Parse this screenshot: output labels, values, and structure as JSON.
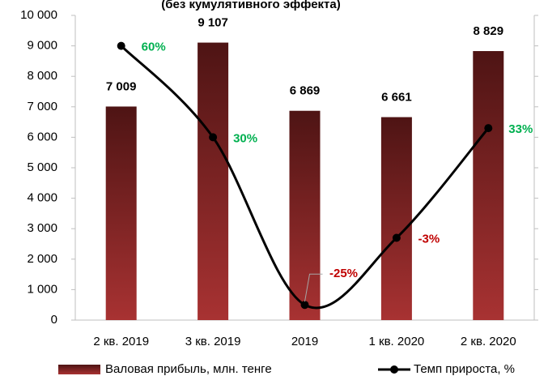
{
  "chart_data": {
    "type": "bar+line",
    "title": "(без кумулятивного эффекта)",
    "categories": [
      "2 кв. 2019",
      "3 кв. 2019",
      "2019",
      "1 кв. 2020",
      "2 кв. 2020"
    ],
    "series": [
      {
        "name": "Валовая прибыль, млн. тенге",
        "type": "bar",
        "color": "#7a2222",
        "values": [
          7009,
          9107,
          6869,
          6661,
          8829
        ],
        "value_labels": [
          "7 009",
          "9 107",
          "6 869",
          "6 661",
          "8 829"
        ]
      },
      {
        "name": "Темп прироста, %",
        "type": "line",
        "axis": "y2",
        "color": "#000000",
        "values": [
          60,
          30,
          -25,
          -3,
          33
        ],
        "value_labels": [
          "60%",
          "30%",
          "-25%",
          "-3%",
          "33%"
        ],
        "label_colors": [
          "#00b050",
          "#00b050",
          "#c00000",
          "#c00000",
          "#00b050"
        ]
      }
    ],
    "ylim": [
      0,
      10000
    ],
    "yticks": [
      {
        "value": 0,
        "label": "0"
      },
      {
        "value": 1000,
        "label": "1 000"
      },
      {
        "value": 2000,
        "label": "2 000"
      },
      {
        "value": 3000,
        "label": "3 000"
      },
      {
        "value": 4000,
        "label": "4 000"
      },
      {
        "value": 5000,
        "label": "5 000"
      },
      {
        "value": 6000,
        "label": "6 000"
      },
      {
        "value": 7000,
        "label": "7 000"
      },
      {
        "value": 8000,
        "label": "8 000"
      },
      {
        "value": 9000,
        "label": "9 000"
      },
      {
        "value": 10000,
        "label": "10 000"
      }
    ],
    "y2lim": [
      -30,
      70
    ],
    "y2ticks": [
      -30,
      -20,
      -10,
      0,
      10,
      20,
      30,
      40,
      50,
      60,
      70
    ],
    "legend": "bottom"
  }
}
